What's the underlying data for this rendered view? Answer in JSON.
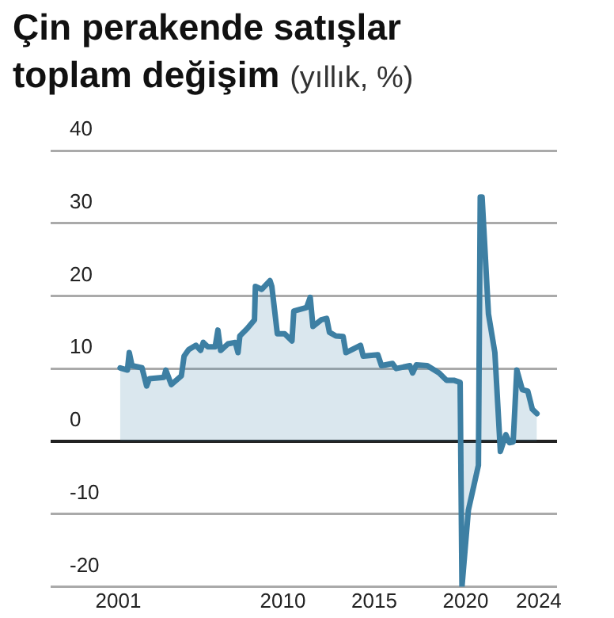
{
  "chart_data": {
    "type": "area",
    "title": "Çin perakende satışlar toplam değişim",
    "subtitle": "(yıllık, %)",
    "x": [
      2001.1,
      2001.5,
      2001.6,
      2001.75,
      2002.3,
      2002.55,
      2002.7,
      2003.5,
      2003.6,
      2003.9,
      2004.45,
      2004.6,
      2004.85,
      2005.25,
      2005.5,
      2005.65,
      2005.9,
      2006.3,
      2006.45,
      2006.6,
      2007.0,
      2007.4,
      2007.55,
      2007.65,
      2008.05,
      2008.45,
      2008.5,
      2008.85,
      2009.3,
      2009.4,
      2009.7,
      2010.1,
      2010.5,
      2010.6,
      2011.3,
      2011.5,
      2011.65,
      2012.1,
      2012.4,
      2012.55,
      2012.9,
      2013.3,
      2013.45,
      2014.25,
      2014.4,
      2015.2,
      2015.4,
      2016.0,
      2016.2,
      2016.95,
      2017.1,
      2017.3,
      2017.9,
      2018.55,
      2018.95,
      2019.35,
      2019.7,
      2019.8,
      2020.15,
      2020.7,
      2020.8,
      2020.9,
      2021.25,
      2021.6,
      2021.9,
      2022.2,
      2022.4,
      2022.6,
      2022.8,
      2023.1,
      2023.4,
      2023.65,
      2023.9
    ],
    "series": [
      {
        "color": "#3d7fa3",
        "values": [
          10.1,
          9.8,
          12.2,
          10.4,
          10.1,
          7.6,
          8.6,
          8.8,
          9.8,
          7.8,
          9.0,
          11.7,
          12.6,
          13.2,
          12.5,
          13.6,
          13.0,
          13.0,
          15.3,
          12.5,
          13.4,
          13.6,
          12.2,
          14.5,
          15.5,
          16.7,
          21.3,
          20.9,
          22.1,
          21.3,
          14.8,
          14.8,
          13.8,
          17.9,
          18.4,
          19.8,
          15.8,
          16.7,
          16.9,
          15.0,
          14.5,
          14.4,
          12.2,
          13.2,
          11.7,
          11.9,
          10.4,
          10.7,
          10.0,
          10.4,
          9.4,
          10.5,
          10.4,
          9.4,
          8.4,
          8.4,
          8.1,
          -20,
          -9.5,
          -3.3,
          33.6,
          33.6,
          17.5,
          12.2,
          -1.4,
          0.9,
          -0.2,
          -0.1,
          9.8,
          7.1,
          6.9,
          4.4,
          3.8
        ]
      }
    ],
    "xlim": [
      1997.3,
      2025
    ],
    "xticks": [
      2001,
      2010,
      2015,
      2020,
      2024
    ],
    "ylim": [
      -20,
      40
    ],
    "yticks": [
      -20,
      -10,
      0,
      10,
      20,
      30,
      40
    ],
    "grid": "y",
    "legend": false
  }
}
